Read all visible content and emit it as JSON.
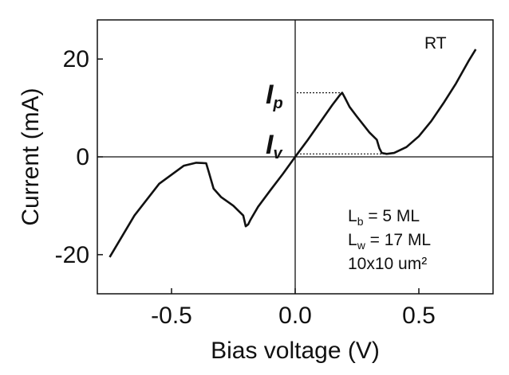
{
  "chart_data": {
    "type": "line",
    "xlabel": "Bias voltage (V)",
    "ylabel": "Current (mA)",
    "xlim": [
      -0.8,
      0.8
    ],
    "ylim": [
      -28,
      28
    ],
    "grid": false,
    "xticks": [
      {
        "value": -0.5,
        "label": "-0.5"
      },
      {
        "value": 0.0,
        "label": "0.0"
      },
      {
        "value": 0.5,
        "label": "0.5"
      }
    ],
    "yticks": [
      {
        "value": -20,
        "label": "-20"
      },
      {
        "value": 0,
        "label": "0"
      },
      {
        "value": 20,
        "label": "20"
      }
    ],
    "series": [
      {
        "x": [
          -0.75,
          -0.65,
          -0.55,
          -0.45,
          -0.4,
          -0.36,
          -0.35,
          -0.33,
          -0.3,
          -0.25,
          -0.21,
          -0.2,
          -0.19,
          -0.18,
          -0.15,
          -0.1,
          -0.05,
          0.0,
          0.05,
          0.1,
          0.15,
          0.18,
          0.19,
          0.2,
          0.22,
          0.25,
          0.3,
          0.33,
          0.34,
          0.35,
          0.37,
          0.4,
          0.45,
          0.5,
          0.55,
          0.6,
          0.65,
          0.7,
          0.73
        ],
        "y": [
          -20.5,
          -12.0,
          -5.5,
          -1.8,
          -1.2,
          -1.3,
          -3.0,
          -6.5,
          -8.2,
          -10.0,
          -12.0,
          -14.2,
          -13.8,
          -12.8,
          -10.2,
          -6.8,
          -3.5,
          0.0,
          3.4,
          7.0,
          10.6,
          12.6,
          13.1,
          12.2,
          10.2,
          8.2,
          5.0,
          3.5,
          1.8,
          0.8,
          0.6,
          0.8,
          2.0,
          4.2,
          7.3,
          11.0,
          15.0,
          19.5,
          22.0
        ]
      }
    ],
    "annotations": {
      "temperature": "RT",
      "peak_label": "I",
      "peak_sub": "p",
      "valley_label": "I",
      "valley_sub": "v",
      "peak_level": 13.1,
      "valley_level": 0.6,
      "peak_voltage": 0.19,
      "valley_voltage": 0.37,
      "params": {
        "lb_main": "L",
        "lb_sub": "b",
        "lb_value": " = 5 ML",
        "lw_main": "L",
        "lw_sub": "w",
        "lw_value": " = 17 ML",
        "area": "10x10 um²"
      }
    }
  }
}
